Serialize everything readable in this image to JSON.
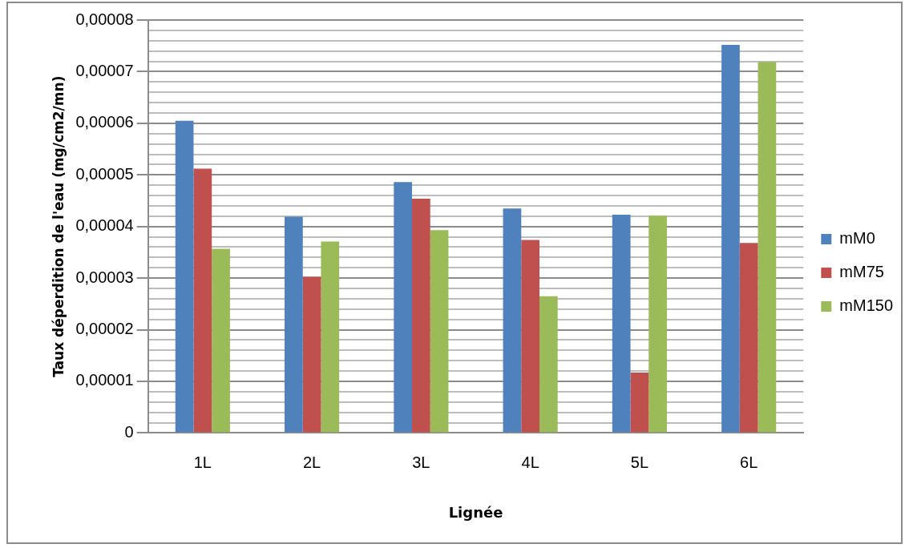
{
  "chart_data": {
    "type": "bar",
    "xlabel": "Lignée",
    "ylabel": "Taux déperdition de l'eau (mg/cm2/mn)",
    "categories": [
      "1L",
      "2L",
      "3L",
      "4L",
      "5L",
      "6L"
    ],
    "series": [
      {
        "name": "mM0",
        "color": "#4f81bd",
        "values": [
          6.05e-05,
          4.19e-05,
          4.86e-05,
          4.35e-05,
          4.23e-05,
          7.52e-05
        ]
      },
      {
        "name": "mM75",
        "color": "#c0504d",
        "values": [
          5.12e-05,
          3.03e-05,
          4.54e-05,
          3.74e-05,
          1.17e-05,
          3.68e-05
        ]
      },
      {
        "name": "mM150",
        "color": "#9bbb59",
        "values": [
          3.57e-05,
          3.71e-05,
          3.93e-05,
          2.65e-05,
          4.21e-05,
          7.19e-05
        ]
      }
    ],
    "ylim": [
      0,
      8e-05
    ],
    "yticks": [
      {
        "value": 0,
        "label": "0"
      },
      {
        "value": 2e-06,
        "label": null
      },
      {
        "value": 4e-06,
        "label": null
      },
      {
        "value": 6e-06,
        "label": null
      },
      {
        "value": 8e-06,
        "label": null
      },
      {
        "value": 1e-05,
        "label": "0,00001"
      },
      {
        "value": 1.2e-05,
        "label": null
      },
      {
        "value": 1.4e-05,
        "label": null
      },
      {
        "value": 1.6e-05,
        "label": null
      },
      {
        "value": 1.8e-05,
        "label": null
      },
      {
        "value": 2e-05,
        "label": "0,00002"
      },
      {
        "value": 2.2e-05,
        "label": null
      },
      {
        "value": 2.4e-05,
        "label": null
      },
      {
        "value": 2.6e-05,
        "label": null
      },
      {
        "value": 2.8e-05,
        "label": null
      },
      {
        "value": 3e-05,
        "label": "0,00003"
      },
      {
        "value": 3.2e-05,
        "label": null
      },
      {
        "value": 3.4e-05,
        "label": null
      },
      {
        "value": 3.6e-05,
        "label": null
      },
      {
        "value": 3.8e-05,
        "label": null
      },
      {
        "value": 4e-05,
        "label": "0,00004"
      },
      {
        "value": 4.2e-05,
        "label": null
      },
      {
        "value": 4.4e-05,
        "label": null
      },
      {
        "value": 4.6e-05,
        "label": null
      },
      {
        "value": 4.8e-05,
        "label": null
      },
      {
        "value": 5e-05,
        "label": "0,00005"
      },
      {
        "value": 5.2e-05,
        "label": null
      },
      {
        "value": 5.4e-05,
        "label": null
      },
      {
        "value": 5.6e-05,
        "label": null
      },
      {
        "value": 5.8e-05,
        "label": null
      },
      {
        "value": 6e-05,
        "label": "0,00006"
      },
      {
        "value": 6.2e-05,
        "label": null
      },
      {
        "value": 6.4e-05,
        "label": null
      },
      {
        "value": 6.6e-05,
        "label": null
      },
      {
        "value": 6.8e-05,
        "label": null
      },
      {
        "value": 7e-05,
        "label": "0,00007"
      },
      {
        "value": 7.2e-05,
        "label": null
      },
      {
        "value": 7.4e-05,
        "label": null
      },
      {
        "value": 7.6e-05,
        "label": null
      },
      {
        "value": 7.8e-05,
        "label": null
      },
      {
        "value": 8e-05,
        "label": "0,00008"
      }
    ],
    "grid": "y",
    "legend": "right"
  }
}
